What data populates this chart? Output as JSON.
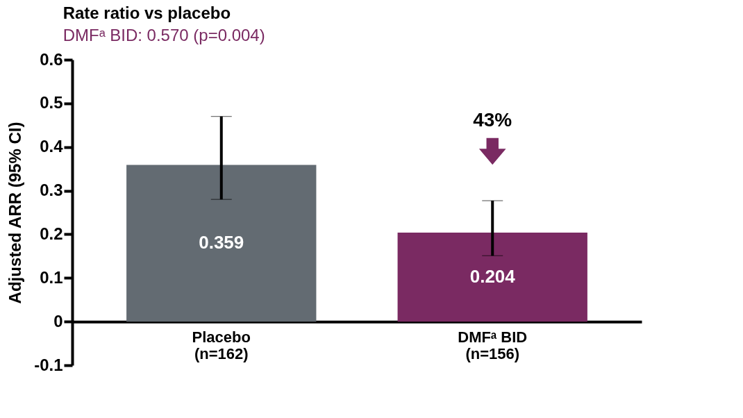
{
  "chart_data": {
    "type": "bar",
    "title": "Rate ratio vs placebo",
    "subtitle": "DMFᵃ BID: 0.570 (p=0.004)",
    "ylabel": "Adjusted ARR (95% CI)",
    "categories": [
      "Placebo\n(n=162)",
      "DMFᵃ BID\n(n=156)"
    ],
    "values": [
      0.359,
      0.204
    ],
    "colors": [
      "#636b72",
      "#7a2a62"
    ],
    "errors": [
      [
        0.28,
        0.47
      ],
      [
        0.151,
        0.277
      ]
    ],
    "data_labels": true,
    "annotations": [
      "43%"
    ],
    "ylim": [
      -0.1,
      0.6
    ],
    "yticks": [
      -0.1,
      0,
      0.1,
      0.2,
      0.3,
      0.4,
      0.5,
      0.6
    ],
    "grid": false
  }
}
